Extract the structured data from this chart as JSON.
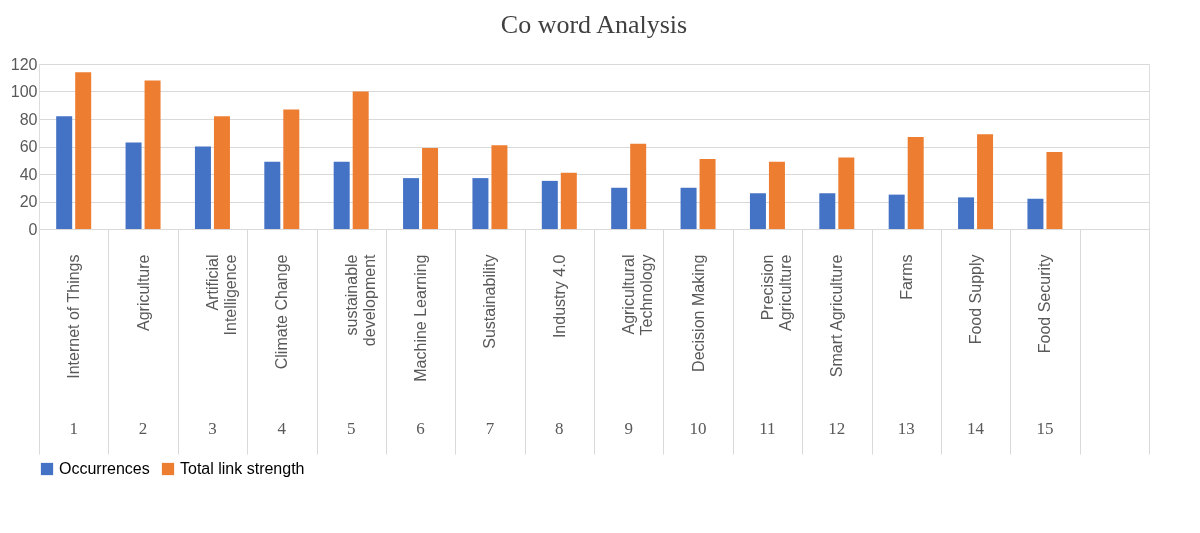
{
  "chart_data": {
    "type": "bar",
    "title": "Co word Analysis",
    "categories": [
      "Internet of Things",
      "Agriculture",
      "Artificial Intelligence",
      "Climate Change",
      "sustainable development",
      "Machine Learning",
      "Sustainability",
      "Industry 4.0",
      "Agricultural Technology",
      "Decision Making",
      "Precision Agriculture",
      "Smart Agriculture",
      "Farms",
      "Food Supply",
      "Food Security",
      null
    ],
    "series": [
      {
        "name": "Occurrences",
        "color": "#4472c4",
        "values": [
          82,
          63,
          60,
          49,
          49,
          37,
          37,
          35,
          30,
          30,
          26,
          26,
          25,
          23,
          22,
          null
        ]
      },
      {
        "name": "Total link strength",
        "color": "#ed7d31",
        "values": [
          114,
          108,
          82,
          87,
          100,
          59,
          61,
          41,
          62,
          51,
          49,
          52,
          67,
          69,
          56,
          null
        ]
      }
    ],
    "annotations": [
      "1",
      "2",
      "3",
      "4",
      "5",
      "6",
      "7",
      "8",
      "9",
      "10",
      "11",
      "12",
      "13",
      "14",
      "15"
    ],
    "ylim": [
      0,
      120
    ],
    "yticks": [
      0,
      20,
      40,
      60,
      80,
      100,
      120
    ],
    "grid": "y",
    "legend": "bottom"
  }
}
